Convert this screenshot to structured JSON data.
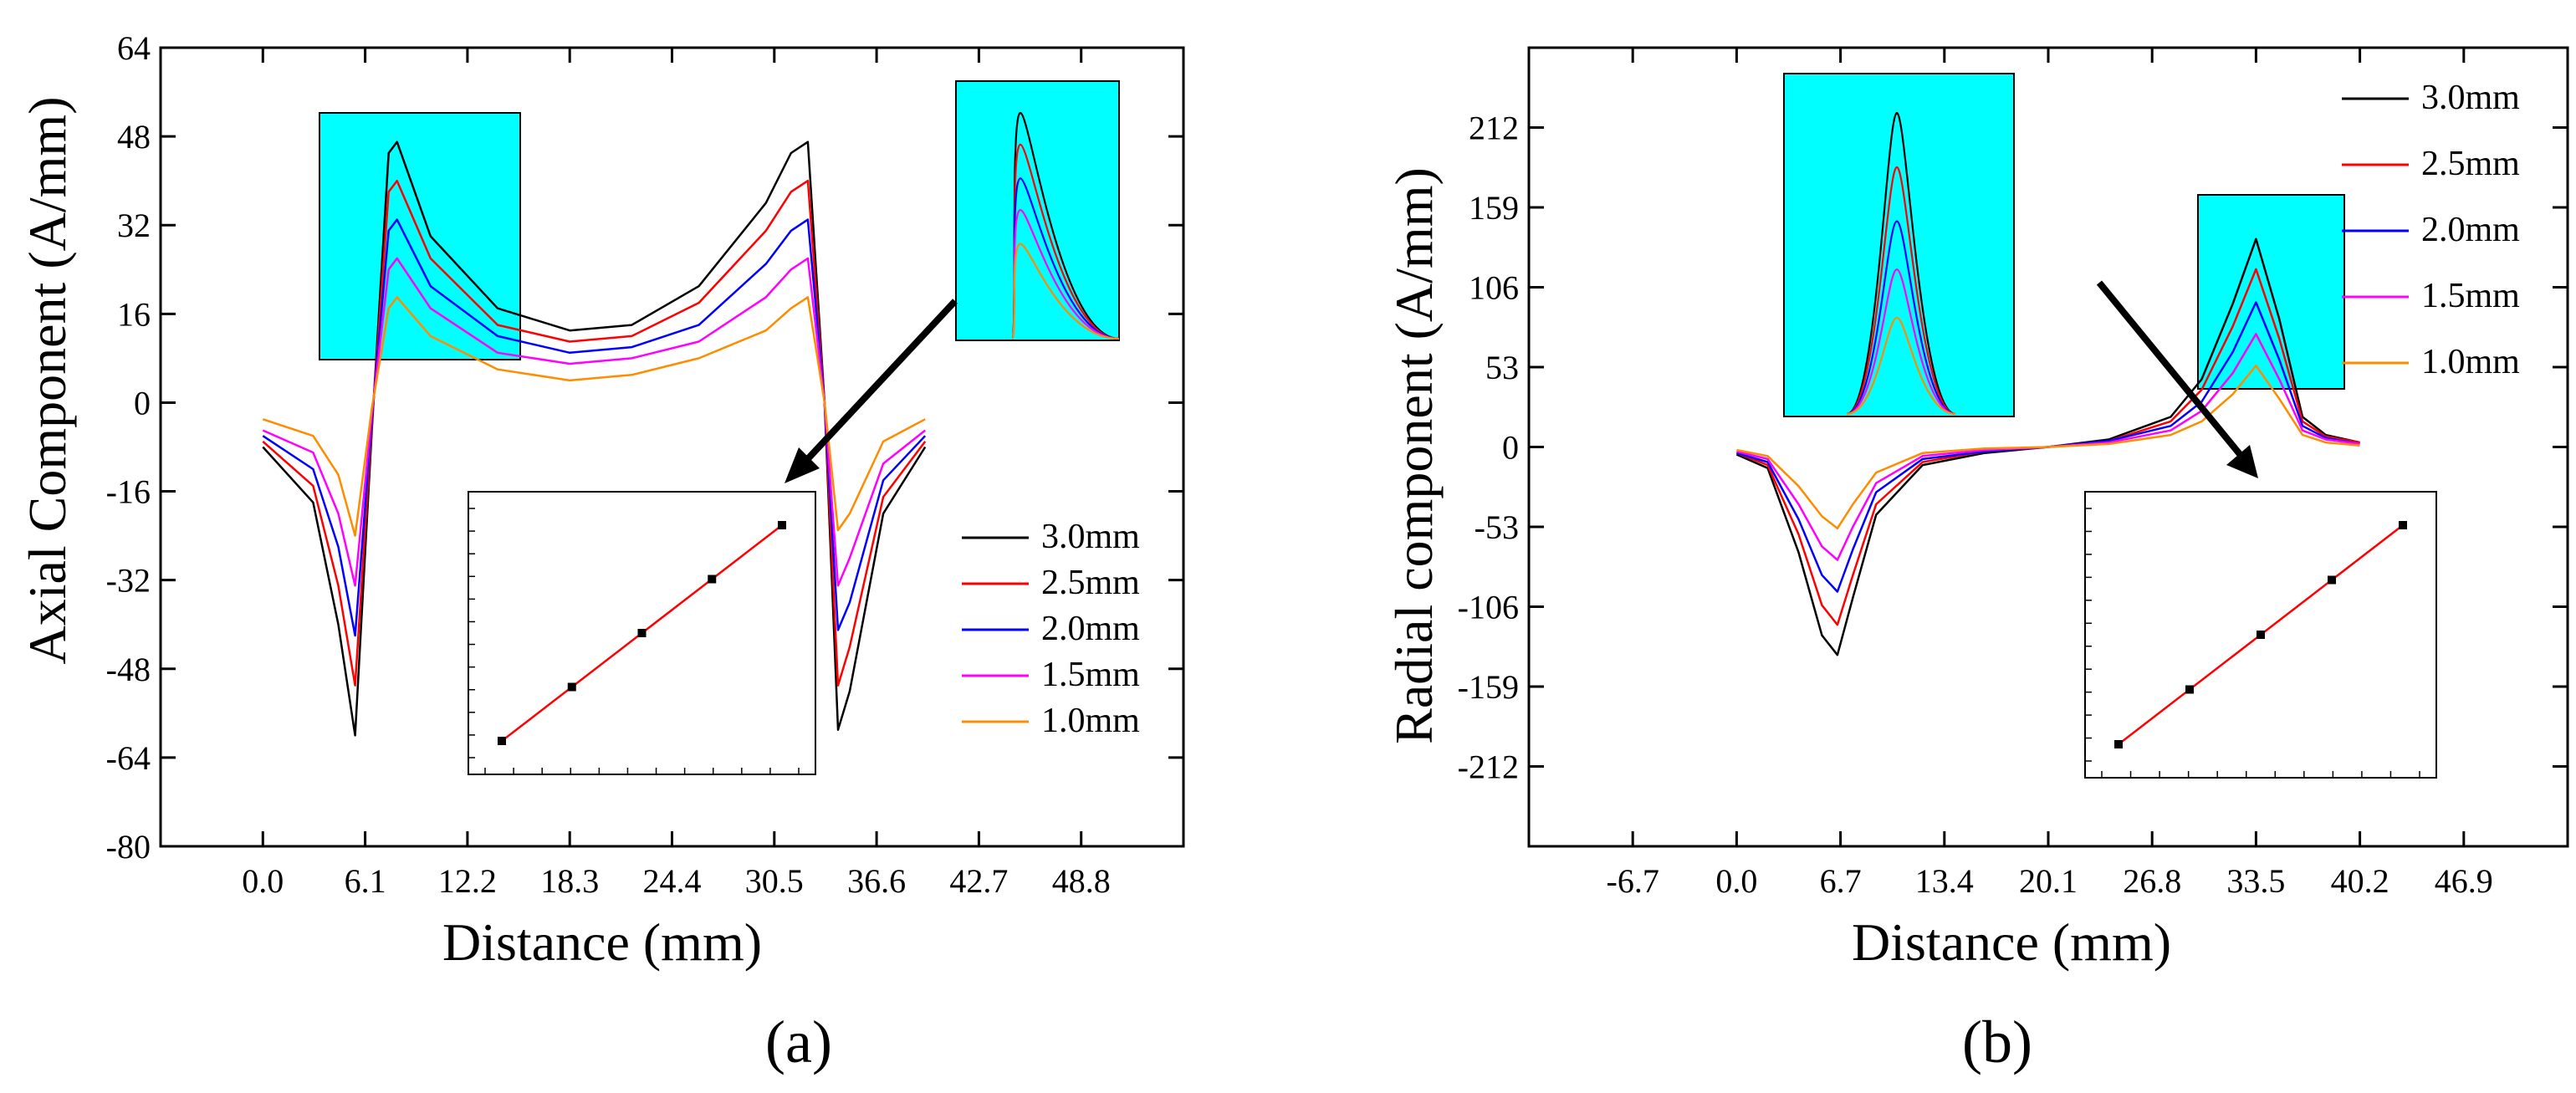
{
  "figure": {
    "panels": [
      {
        "label": "(a)",
        "title": "",
        "xlabel": "Distance (mm)",
        "ylabel": "Axial Component (A/mm)",
        "xlim": [
          -6.1,
          54.9
        ],
        "ylim": [
          -80,
          64
        ],
        "xticks": [
          "0.0",
          "6.1",
          "12.2",
          "18.3",
          "24.4",
          "30.5",
          "36.6",
          "42.7",
          "48.8"
        ],
        "yticks": [
          "-80",
          "-64",
          "-48",
          "-32",
          "-16",
          "0",
          "16",
          "32",
          "48",
          "64"
        ],
        "legend": [
          "3.0mm",
          "2.5mm",
          "2.0mm",
          "1.5mm",
          "1.0mm"
        ]
      },
      {
        "label": "(b)",
        "title": "",
        "xlabel": "Distance (mm)",
        "ylabel": "Radial component (A/mm)",
        "xlim": [
          -13.4,
          53.6
        ],
        "ylim": [
          -265,
          265
        ],
        "xticks": [
          "-6.7",
          "0.0",
          "6.7",
          "13.4",
          "20.1",
          "26.8",
          "33.5",
          "40.2",
          "46.9"
        ],
        "yticks": [
          "-212",
          "-159",
          "-106",
          "-53",
          "0",
          "53",
          "106",
          "159",
          "212"
        ],
        "legend": [
          "3.0mm",
          "2.5mm",
          "2.0mm",
          "1.5mm",
          "1.0mm"
        ]
      }
    ]
  },
  "colors": {
    "3.0mm": "#000000",
    "2.5mm": "#ff0000",
    "2.0mm": "#0000ff",
    "1.5mm": "#ff00ff",
    "1.0mm": "#ff8c00",
    "inset_bg": "#00ffff",
    "fit_line": "#ff0000"
  },
  "chart_data": [
    {
      "type": "line",
      "panel": "(a)",
      "xlabel": "Distance (mm)",
      "ylabel": "Axial Component (A/mm)",
      "xlim": [
        -6.1,
        54.9
      ],
      "ylim": [
        -80,
        64
      ],
      "x": [
        0,
        3,
        4.5,
        5.5,
        6.5,
        7.5,
        8,
        10,
        14,
        18.3,
        22,
        26,
        30,
        31.5,
        32.5,
        33.5,
        34.3,
        35,
        37,
        39.5
      ],
      "series": [
        {
          "name": "3.0mm",
          "values": [
            -8,
            -18,
            -40,
            -60,
            -5,
            45,
            47,
            30,
            17,
            13,
            14,
            21,
            36,
            45,
            47,
            0,
            -59,
            -52,
            -20,
            -8
          ]
        },
        {
          "name": "2.5mm",
          "values": [
            -7,
            -15,
            -33,
            -51,
            -4,
            38,
            40,
            26,
            14,
            11,
            12,
            18,
            31,
            38,
            40,
            0,
            -51,
            -44,
            -17,
            -7
          ]
        },
        {
          "name": "2.0mm",
          "values": [
            -6,
            -12,
            -26,
            -42,
            -3,
            31,
            33,
            21,
            12,
            9,
            10,
            14,
            25,
            31,
            33,
            0,
            -41,
            -36,
            -14,
            -6
          ]
        },
        {
          "name": "1.5mm",
          "values": [
            -5,
            -9,
            -20,
            -33,
            -2,
            24,
            26,
            17,
            9,
            7,
            8,
            11,
            19,
            24,
            26,
            0,
            -33,
            -28,
            -11,
            -5
          ]
        },
        {
          "name": "1.0mm",
          "values": [
            -3,
            -6,
            -13,
            -24,
            -1,
            17,
            19,
            12,
            6,
            4,
            5,
            8,
            13,
            17,
            19,
            0,
            -23,
            -20,
            -7,
            -3
          ]
        }
      ],
      "inset_linear_fit": {
        "points_x": [
          1,
          2,
          3,
          4,
          5
        ],
        "points_y": [
          1,
          2,
          3,
          4,
          5
        ]
      }
    },
    {
      "type": "line",
      "panel": "(b)",
      "xlabel": "Distance (mm)",
      "ylabel": "Radial component (A/mm)",
      "xlim": [
        -13.4,
        53.6
      ],
      "ylim": [
        -265,
        265
      ],
      "x": [
        0,
        2,
        4,
        5.5,
        6.5,
        7.5,
        9,
        12,
        16,
        20.1,
        24,
        28,
        30,
        32,
        33.5,
        35,
        36.5,
        38,
        40.2
      ],
      "series": [
        {
          "name": "3.0mm",
          "values": [
            -5,
            -14,
            -70,
            -125,
            -138,
            -100,
            -45,
            -12,
            -4,
            0,
            5,
            20,
            45,
            95,
            138,
            85,
            20,
            8,
            3
          ]
        },
        {
          "name": "2.5mm",
          "values": [
            -4,
            -12,
            -58,
            -105,
            -118,
            -85,
            -38,
            -10,
            -3,
            0,
            4,
            17,
            38,
            80,
            118,
            72,
            17,
            7,
            3
          ]
        },
        {
          "name": "2.0mm",
          "values": [
            -4,
            -10,
            -48,
            -85,
            -96,
            -68,
            -30,
            -8,
            -3,
            0,
            4,
            14,
            30,
            63,
            96,
            58,
            14,
            6,
            2
          ]
        },
        {
          "name": "1.5mm",
          "values": [
            -3,
            -8,
            -38,
            -66,
            -75,
            -53,
            -24,
            -6,
            -2,
            0,
            3,
            11,
            24,
            49,
            75,
            45,
            11,
            5,
            2
          ]
        },
        {
          "name": "1.0mm",
          "values": [
            -2,
            -6,
            -26,
            -46,
            -54,
            -38,
            -17,
            -4,
            -1,
            0,
            2,
            8,
            17,
            35,
            54,
            32,
            8,
            3,
            1
          ]
        }
      ],
      "inset_linear_fit": {
        "points_x": [
          1,
          2,
          3,
          4,
          5
        ],
        "points_y": [
          1,
          2,
          3,
          4,
          5
        ]
      }
    }
  ]
}
